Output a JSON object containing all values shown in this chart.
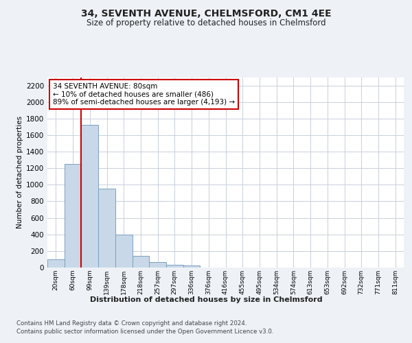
{
  "title": "34, SEVENTH AVENUE, CHELMSFORD, CM1 4EE",
  "subtitle": "Size of property relative to detached houses in Chelmsford",
  "xlabel": "Distribution of detached houses by size in Chelmsford",
  "ylabel": "Number of detached properties",
  "footer1": "Contains HM Land Registry data © Crown copyright and database right 2024.",
  "footer2": "Contains public sector information licensed under the Open Government Licence v3.0.",
  "bin_labels": [
    "20sqm",
    "60sqm",
    "99sqm",
    "139sqm",
    "178sqm",
    "218sqm",
    "257sqm",
    "297sqm",
    "336sqm",
    "376sqm",
    "416sqm",
    "455sqm",
    "495sqm",
    "534sqm",
    "574sqm",
    "613sqm",
    "653sqm",
    "692sqm",
    "732sqm",
    "771sqm",
    "811sqm"
  ],
  "bar_values": [
    100,
    1250,
    1720,
    950,
    400,
    145,
    65,
    35,
    25,
    0,
    0,
    0,
    0,
    0,
    0,
    0,
    0,
    0,
    0,
    0,
    0
  ],
  "bar_color": "#c8d8e8",
  "bar_edge_color": "#7aa0c0",
  "vline_x_idx": 1,
  "vline_color": "#cc0000",
  "annotation_text": "34 SEVENTH AVENUE: 80sqm\n← 10% of detached houses are smaller (486)\n89% of semi-detached houses are larger (4,193) →",
  "annotation_box_color": "#ffffff",
  "annotation_box_edge": "#cc0000",
  "ylim": [
    0,
    2300
  ],
  "yticks": [
    0,
    200,
    400,
    600,
    800,
    1000,
    1200,
    1400,
    1600,
    1800,
    2000,
    2200
  ],
  "bg_color": "#eef2f7",
  "plot_bg_color": "#ffffff",
  "grid_color": "#c8d0dc"
}
